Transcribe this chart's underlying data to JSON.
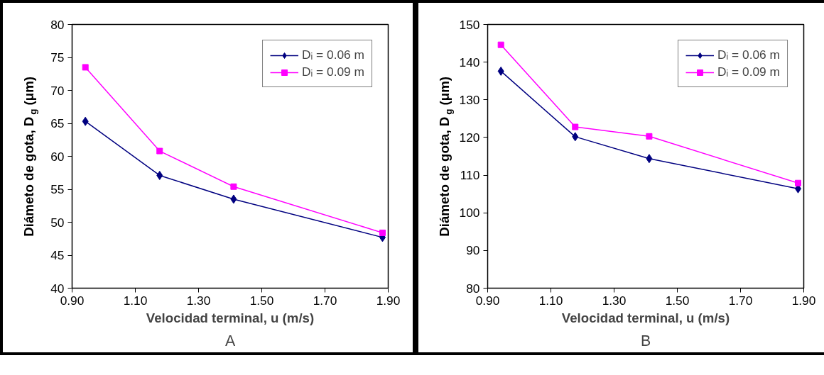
{
  "chart_data": [
    {
      "type": "line",
      "title": "A",
      "xlabel": "Velocidad terminal, u (m/s)",
      "ylabel": "Diámeto de gota, D$_{g}$ (μm)",
      "x": [
        0.942,
        1.177,
        1.411,
        1.882
      ],
      "series": [
        {
          "name": "Dᵢ = 0.06 m",
          "color": "#000080",
          "marker": "diamond",
          "values": [
            65.3,
            57.1,
            53.5,
            47.7
          ]
        },
        {
          "name": "Dᵢ = 0.09 m",
          "color": "#ff00ff",
          "marker": "square",
          "values": [
            73.5,
            60.8,
            55.4,
            48.4
          ]
        }
      ],
      "xlim": [
        0.9,
        1.9
      ],
      "xticks": [
        {
          "value": 0.9,
          "label": "0.90"
        },
        {
          "value": 1.1,
          "label": "1.10"
        },
        {
          "value": 1.3,
          "label": "1.30"
        },
        {
          "value": 1.5,
          "label": "1.50"
        },
        {
          "value": 1.7,
          "label": "1.70"
        },
        {
          "value": 1.9,
          "label": "1.90"
        }
      ],
      "ylim": [
        40,
        80
      ],
      "yticks": [
        40,
        45,
        50,
        55,
        60,
        65,
        70,
        75,
        80
      ],
      "legend": "top right",
      "grid": false
    },
    {
      "type": "line",
      "title": "B",
      "xlabel": "Velocidad terminal, u (m/s)",
      "ylabel": "Diámeto de gota, D$_{g}$ (μm)",
      "x": [
        0.942,
        1.177,
        1.411,
        1.882
      ],
      "series": [
        {
          "name": "Dᵢ = 0.06 m",
          "color": "#000080",
          "marker": "diamond",
          "values": [
            137.6,
            120.2,
            114.4,
            106.4
          ]
        },
        {
          "name": "Dᵢ = 0.09 m",
          "color": "#ff00ff",
          "marker": "square",
          "values": [
            144.6,
            122.8,
            120.3,
            107.9
          ]
        }
      ],
      "xlim": [
        0.9,
        1.9
      ],
      "xticks": [
        {
          "value": 0.9,
          "label": "0.90"
        },
        {
          "value": 1.1,
          "label": "1.10"
        },
        {
          "value": 1.3,
          "label": "1.30"
        },
        {
          "value": 1.5,
          "label": "1.50"
        },
        {
          "value": 1.7,
          "label": "1.70"
        },
        {
          "value": 1.9,
          "label": "1.90"
        }
      ],
      "ylim": [
        80,
        150
      ],
      "yticks": [
        80,
        90,
        100,
        110,
        120,
        130,
        140,
        150
      ],
      "legend": "top right",
      "grid": false
    }
  ]
}
